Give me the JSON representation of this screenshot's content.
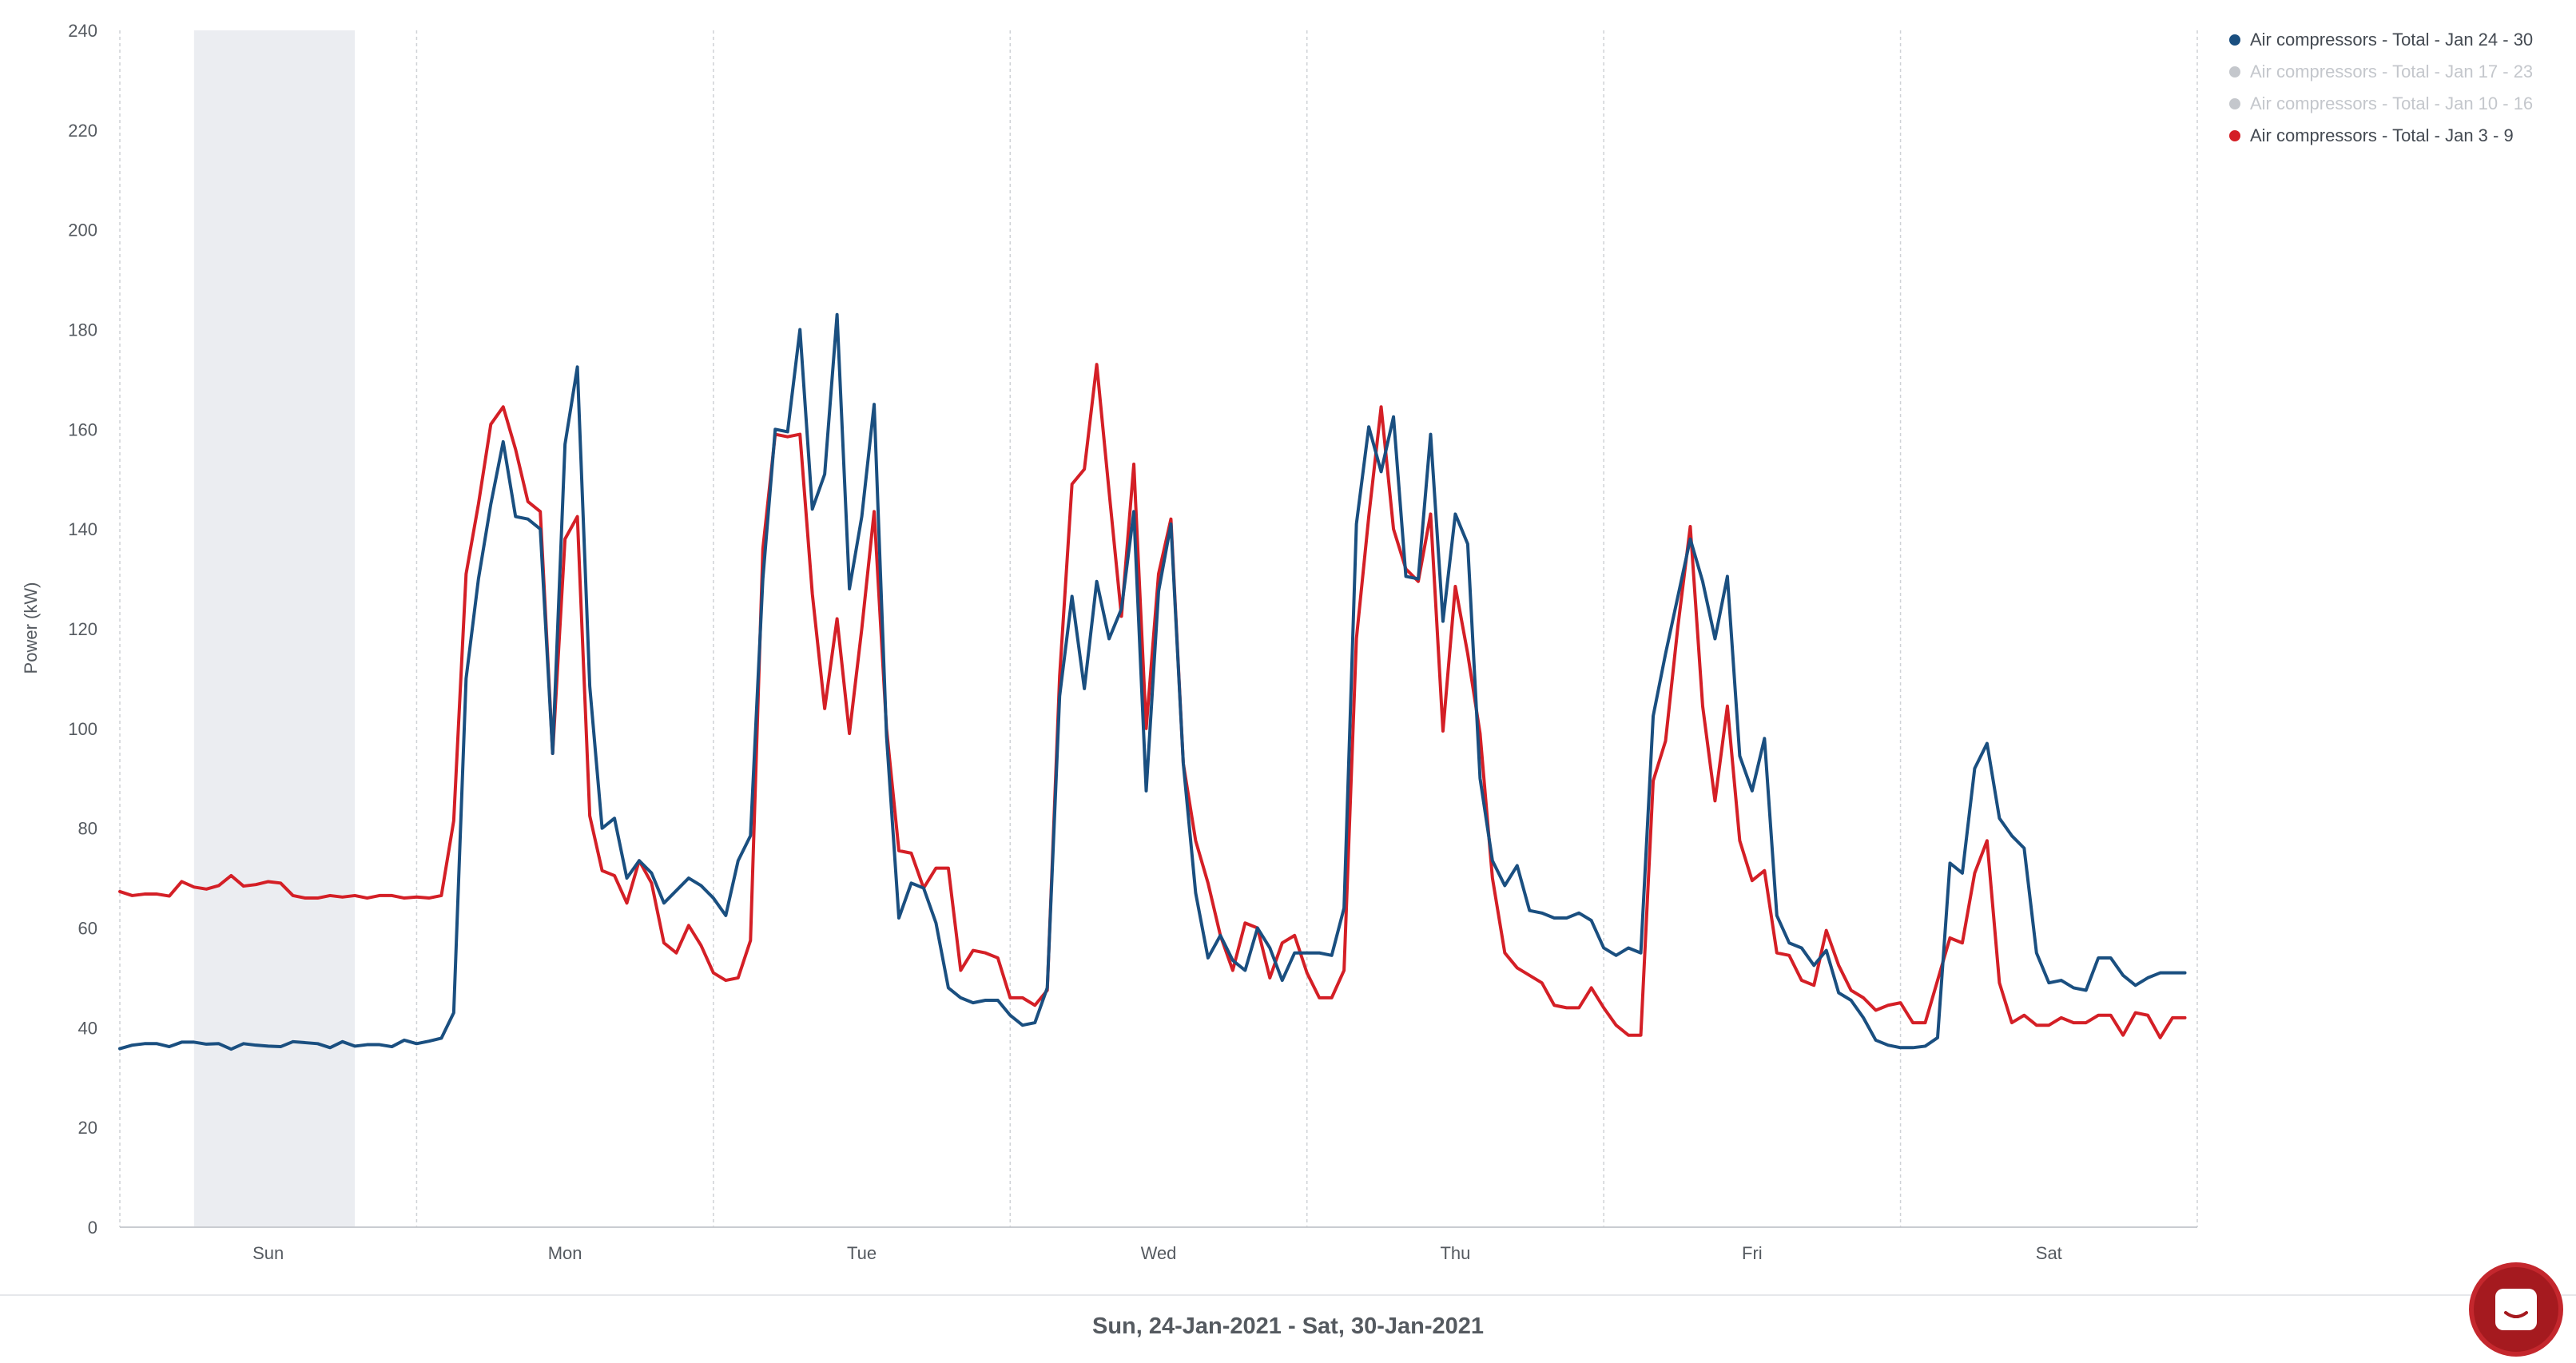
{
  "footer": {
    "range_label": "Sun, 24-Jan-2021 - Sat, 30-Jan-2021"
  },
  "chat": {
    "icon": "chat-icon"
  },
  "chart_data": {
    "type": "line",
    "ylabel": "Power (kW)",
    "xlabel": "",
    "ylim": [
      0,
      240
    ],
    "y_ticks": [
      0,
      20,
      40,
      60,
      80,
      100,
      120,
      140,
      160,
      180,
      200,
      220,
      240
    ],
    "x_unit": "hours since start of week",
    "xlim": [
      0,
      168
    ],
    "day_labels": [
      "Sun",
      "Mon",
      "Tue",
      "Wed",
      "Thu",
      "Fri",
      "Sat"
    ],
    "highlight_range": [
      6,
      19
    ],
    "grid": "vertical dashed at day boundaries",
    "legend_position": "top-right",
    "series": [
      {
        "name": "Air compressors - Total - Jan 24 - 30",
        "color": "#1a4f80",
        "visible": true,
        "values": [
          35.8,
          36.5,
          36.8,
          36.8,
          36.2,
          37.1,
          37.1,
          36.7,
          36.8,
          35.7,
          36.8,
          36.5,
          36.3,
          36.2,
          37.2,
          37.0,
          36.8,
          36.0,
          37.2,
          36.3,
          36.6,
          36.6,
          36.2,
          37.5,
          36.8,
          37.3,
          37.9,
          43.0,
          110.0,
          130.0,
          145.0,
          157.5,
          142.5,
          142.0,
          140.0,
          95.0,
          157.0,
          172.5,
          108.5,
          80.0,
          82.0,
          70.0,
          73.5,
          71.0,
          65.0,
          67.5,
          70.0,
          68.5,
          66.0,
          62.5,
          73.5,
          78.5,
          130.0,
          160.0,
          159.5,
          180.0,
          144.0,
          151.0,
          183.0,
          128.0,
          142.5,
          165.0,
          98.5,
          62.0,
          69.0,
          68.0,
          61.0,
          48.0,
          46.0,
          45.0,
          45.5,
          45.5,
          42.5,
          40.5,
          41.0,
          48.0,
          106.5,
          126.5,
          108.0,
          129.5,
          118.0,
          124.0,
          143.5,
          87.5,
          127.5,
          141.0,
          93.0,
          67.0,
          54.0,
          58.5,
          53.5,
          51.5,
          60.0,
          56.0,
          49.5,
          55.0,
          55.0,
          55.0,
          54.5,
          64.0,
          141.0,
          160.5,
          151.5,
          162.5,
          130.5,
          130.0,
          159.0,
          121.5,
          143.0,
          137.0,
          90.0,
          73.5,
          68.5,
          72.5,
          63.5,
          63.0,
          62.0,
          62.0,
          63.0,
          61.5,
          56.0,
          54.5,
          56.0,
          55.0,
          102.5,
          115.0,
          126.5,
          138.0,
          129.5,
          118.0,
          130.5,
          94.5,
          87.5,
          98.0,
          62.5,
          57.0,
          56.0,
          52.5,
          55.5,
          47.0,
          45.5,
          42.0,
          37.5,
          36.5,
          36.0,
          36.0,
          36.3,
          38.0,
          73.0,
          71.0,
          92.0,
          97.0,
          82.0,
          78.5,
          76.0,
          55.0,
          49.0,
          49.5,
          48.0,
          47.5,
          54.0,
          54.0,
          50.5,
          48.5,
          50.0,
          51.0,
          51.0,
          51.0
        ]
      },
      {
        "name": "Air compressors - Total - Jan 17 - 23",
        "color": "#c4c7cc",
        "visible": false,
        "values": []
      },
      {
        "name": "Air compressors - Total - Jan 10 - 16",
        "color": "#c4c7cc",
        "visible": false,
        "values": []
      },
      {
        "name": "Air compressors - Total - Jan 3 - 9",
        "color": "#d41f26",
        "visible": true,
        "values": [
          67.3,
          66.5,
          66.8,
          66.8,
          66.4,
          69.3,
          68.2,
          67.8,
          68.5,
          70.5,
          68.4,
          68.7,
          69.3,
          69.0,
          66.5,
          66.0,
          66.0,
          66.5,
          66.2,
          66.5,
          66.0,
          66.5,
          66.5,
          66.0,
          66.2,
          66.0,
          66.5,
          81.5,
          131.0,
          145.0,
          161.0,
          164.5,
          156.0,
          145.5,
          143.5,
          95.0,
          138.0,
          142.5,
          82.5,
          71.5,
          70.5,
          65.0,
          73.5,
          69.0,
          57.0,
          55.0,
          60.5,
          56.5,
          51.0,
          49.5,
          50.0,
          57.5,
          136.0,
          159.0,
          158.5,
          159.0,
          127.0,
          104.0,
          122.0,
          99.0,
          120.0,
          143.5,
          100.0,
          75.5,
          75.0,
          68.0,
          72.0,
          72.0,
          51.5,
          55.5,
          55.0,
          54.0,
          46.0,
          46.0,
          44.5,
          47.5,
          110.5,
          149.0,
          152.0,
          173.0,
          147.5,
          122.5,
          153.0,
          100.0,
          131.0,
          142.0,
          93.0,
          77.5,
          69.0,
          58.5,
          51.5,
          61.0,
          60.0,
          50.0,
          57.0,
          58.5,
          51.0,
          46.0,
          46.0,
          51.5,
          118.0,
          142.5,
          164.5,
          140.0,
          132.0,
          129.5,
          143.0,
          99.5,
          128.5,
          115.0,
          99.0,
          70.0,
          55.0,
          52.0,
          50.5,
          49.0,
          44.5,
          44.0,
          44.0,
          48.0,
          44.0,
          40.5,
          38.5,
          38.5,
          89.5,
          97.5,
          120.5,
          140.5,
          104.5,
          85.5,
          104.5,
          77.5,
          69.5,
          71.5,
          55.0,
          54.5,
          49.5,
          48.5,
          59.5,
          52.5,
          47.5,
          46.0,
          43.5,
          44.5,
          45.0,
          41.0,
          41.0,
          49.5,
          58.0,
          57.0,
          71.0,
          77.5,
          49.0,
          41.0,
          42.5,
          40.5,
          40.5,
          42.0,
          41.0,
          41.0,
          42.5,
          42.5,
          38.5,
          43.0,
          42.5,
          38.0,
          42.0,
          42.0
        ]
      }
    ]
  }
}
